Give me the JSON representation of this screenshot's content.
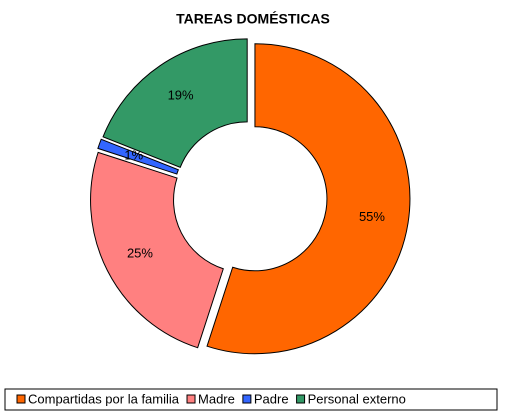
{
  "chart_data": {
    "type": "donut",
    "title": "TAREAS DOMÉSTICAS",
    "categories": [
      "Compartidas por la familia",
      "Madre",
      "Padre",
      "Personal externo"
    ],
    "values": [
      55,
      25,
      1,
      19
    ],
    "value_labels": [
      "55%",
      "25%",
      "1%",
      "19%"
    ],
    "colors": [
      "#ff6600",
      "#ff8080",
      "#3366ff",
      "#339966"
    ],
    "legend": "bottom"
  }
}
